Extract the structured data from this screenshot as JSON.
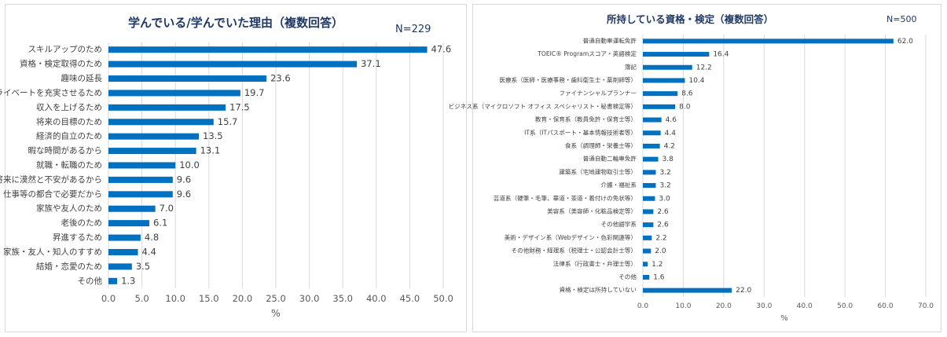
{
  "chart_data": [
    {
      "type": "bar",
      "orientation": "horizontal",
      "title": "学んでいる/学んでいた理由（複数回答）",
      "n_label": "N=229",
      "xlabel": "%",
      "xlim": [
        0,
        50
      ],
      "xticks": [
        "0.0",
        "5.0",
        "10.0",
        "15.0",
        "20.0",
        "25.0",
        "30.0",
        "35.0",
        "40.0",
        "45.0",
        "50.0"
      ],
      "grid": true,
      "categories": [
        "スキルアップのため",
        "資格・検定取得のため",
        "趣味の延長",
        "プライベートを充実させるため",
        "収入を上げるため",
        "将来の目標のため",
        "経済的自立のため",
        "暇な時間があるから",
        "就職・転職のため",
        "将来に漠然と不安があるから",
        "仕事等の都合で必要だから",
        "家族や友人のため",
        "老後のため",
        "昇進するため",
        "家族・友人・知人のすすめ",
        "結婚・恋愛のため",
        "その他"
      ],
      "values": [
        47.6,
        37.1,
        23.6,
        19.7,
        17.5,
        15.7,
        13.5,
        13.1,
        10.0,
        9.6,
        9.6,
        7.0,
        6.1,
        4.8,
        4.4,
        3.5,
        1.3
      ],
      "value_labels": [
        "47.6",
        "37.1",
        "23.6",
        "19.7",
        "17.5",
        "15.7",
        "13.5",
        "13.1",
        "10.0",
        "9.6",
        "9.6",
        "7.0",
        "6.1",
        "4.8",
        "4.4",
        "3.5",
        "1.3"
      ],
      "bar_color": "#0070c0"
    },
    {
      "type": "bar",
      "orientation": "horizontal",
      "title": "所持している資格・検定（複数回答）",
      "n_label": "N=500",
      "xlabel": "%",
      "xlim": [
        0,
        70
      ],
      "xticks": [
        "0.0",
        "10.0",
        "20.0",
        "30.0",
        "40.0",
        "50.0",
        "60.0",
        "70.0"
      ],
      "grid": true,
      "categories": [
        "普通自動車運転免許",
        "TOEIC® Programスコア・英語検定",
        "簿記",
        "医療系（医師・医療事務・歯科衛生士・薬剤師等）",
        "ファイナンシャルプランナー",
        "ビジネス系（マイクロソフト オフィス スペシャリスト・秘書検定等）",
        "教育・保育系（教員免許・保育士等）",
        "IT系（ITパスポート・基本情報技術者等）",
        "食系（調理師・栄養士等）",
        "普通自動二輪車免許",
        "建築系（宅地建物取引士等）",
        "介護・福祉系",
        "芸道系（硬筆・毛筆、華道・茶道・着付けの免状等）",
        "美容系（美容師・化粧品検定等）",
        "その他語学系",
        "美術・デザイン系（Webデザイン・色彩関連等）",
        "その他財務・経理系（税理士・公認会計士等）",
        "法律系（行政書士・弁理士等）",
        "その他",
        "資格・検定は所持していない"
      ],
      "values": [
        62.0,
        16.4,
        12.2,
        10.4,
        8.6,
        8.0,
        4.6,
        4.4,
        4.2,
        3.8,
        3.2,
        3.2,
        3.0,
        2.6,
        2.6,
        2.2,
        2.0,
        1.2,
        1.6,
        22.0
      ],
      "value_labels": [
        "62.0",
        "16.4",
        "12.2",
        "10.4",
        "8.6",
        "8.0",
        "4.6",
        "4.4",
        "4.2",
        "3.8",
        "3.2",
        "3.2",
        "3.0",
        "2.6",
        "2.6",
        "2.2",
        "2.0",
        "1.2",
        "1.6",
        "22.0"
      ],
      "bar_color": "#0070c0"
    }
  ]
}
